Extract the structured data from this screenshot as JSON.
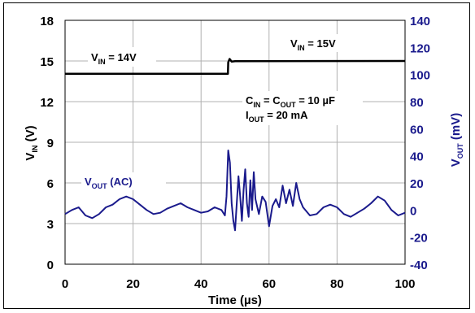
{
  "chart_data": {
    "type": "line",
    "xlabel": "Time (µs)",
    "ylabel_left": {
      "main": "V",
      "sub": "IN",
      "rest": " (V)"
    },
    "ylabel_right": {
      "main": "V",
      "sub": "OUT",
      "rest": " (mV)"
    },
    "xlim": [
      0,
      100
    ],
    "ylim_left": [
      0,
      18
    ],
    "ylim_right": [
      -40,
      140
    ],
    "x_ticks": [
      "0",
      "20",
      "40",
      "60",
      "80",
      "100"
    ],
    "y_ticks_left": [
      "0",
      "3",
      "6",
      "9",
      "12",
      "15",
      "18"
    ],
    "y_ticks_right": [
      "-40",
      "-20",
      "0",
      "20",
      "40",
      "60",
      "80",
      "100",
      "120",
      "140"
    ],
    "grid": true,
    "colors": {
      "vin": "#000000",
      "vout": "#1a1a8c",
      "right_axis": "#1a1a8c",
      "grid": "#b0b0b0"
    },
    "annotations": {
      "vin_before": {
        "main": "V",
        "sub": "IN",
        "rest": " = 14V"
      },
      "vin_after": {
        "main": "V",
        "sub": "IN",
        "rest": " = 15V"
      },
      "cap_line": {
        "p1": "C",
        "s1": "IN",
        "p2": " = C",
        "s2": "OUT",
        "p3": " = 10 µF"
      },
      "iout_line": {
        "p1": "I",
        "s1": "OUT",
        "p2": " = 20 mA"
      },
      "vout_label": {
        "main": "V",
        "sub": "OUT",
        "rest": " (AC)"
      }
    },
    "series": [
      {
        "axis": "left",
        "x": [
          0,
          47.9,
          48.0,
          48.4,
          49.0,
          50,
          100
        ],
        "y": [
          14.05,
          14.05,
          14.9,
          15.15,
          14.95,
          14.98,
          15.0
        ]
      },
      {
        "axis": "right",
        "x": [
          0,
          2,
          4,
          6,
          8,
          10,
          12,
          14,
          16,
          18,
          20,
          22,
          24,
          26,
          28,
          30,
          32,
          34,
          36,
          38,
          40,
          42,
          44,
          46,
          47,
          47.5,
          48,
          48.5,
          49,
          49.5,
          50,
          50.5,
          51,
          51.5,
          52,
          52.5,
          53,
          53.5,
          54,
          54.5,
          55,
          55.5,
          56,
          57,
          58,
          59,
          60,
          61,
          62,
          63,
          64,
          65,
          66,
          67,
          68,
          69,
          70,
          72,
          74,
          76,
          78,
          80,
          82,
          84,
          86,
          88,
          90,
          92,
          94,
          96,
          98,
          100
        ],
        "y": [
          -3,
          0,
          2,
          -4,
          -6,
          -3,
          2,
          4,
          8,
          10,
          8,
          4,
          0,
          -3,
          -2,
          1,
          3,
          5,
          2,
          0,
          -2,
          -1,
          2,
          0,
          -4,
          10,
          44,
          35,
          5,
          -8,
          -15,
          5,
          25,
          10,
          -8,
          15,
          30,
          5,
          -5,
          22,
          0,
          28,
          8,
          -3,
          10,
          6,
          -12,
          3,
          8,
          2,
          18,
          5,
          15,
          3,
          20,
          8,
          2,
          -4,
          -3,
          2,
          4,
          2,
          -3,
          -5,
          -2,
          1,
          5,
          10,
          7,
          0,
          -4,
          -2
        ]
      }
    ]
  }
}
